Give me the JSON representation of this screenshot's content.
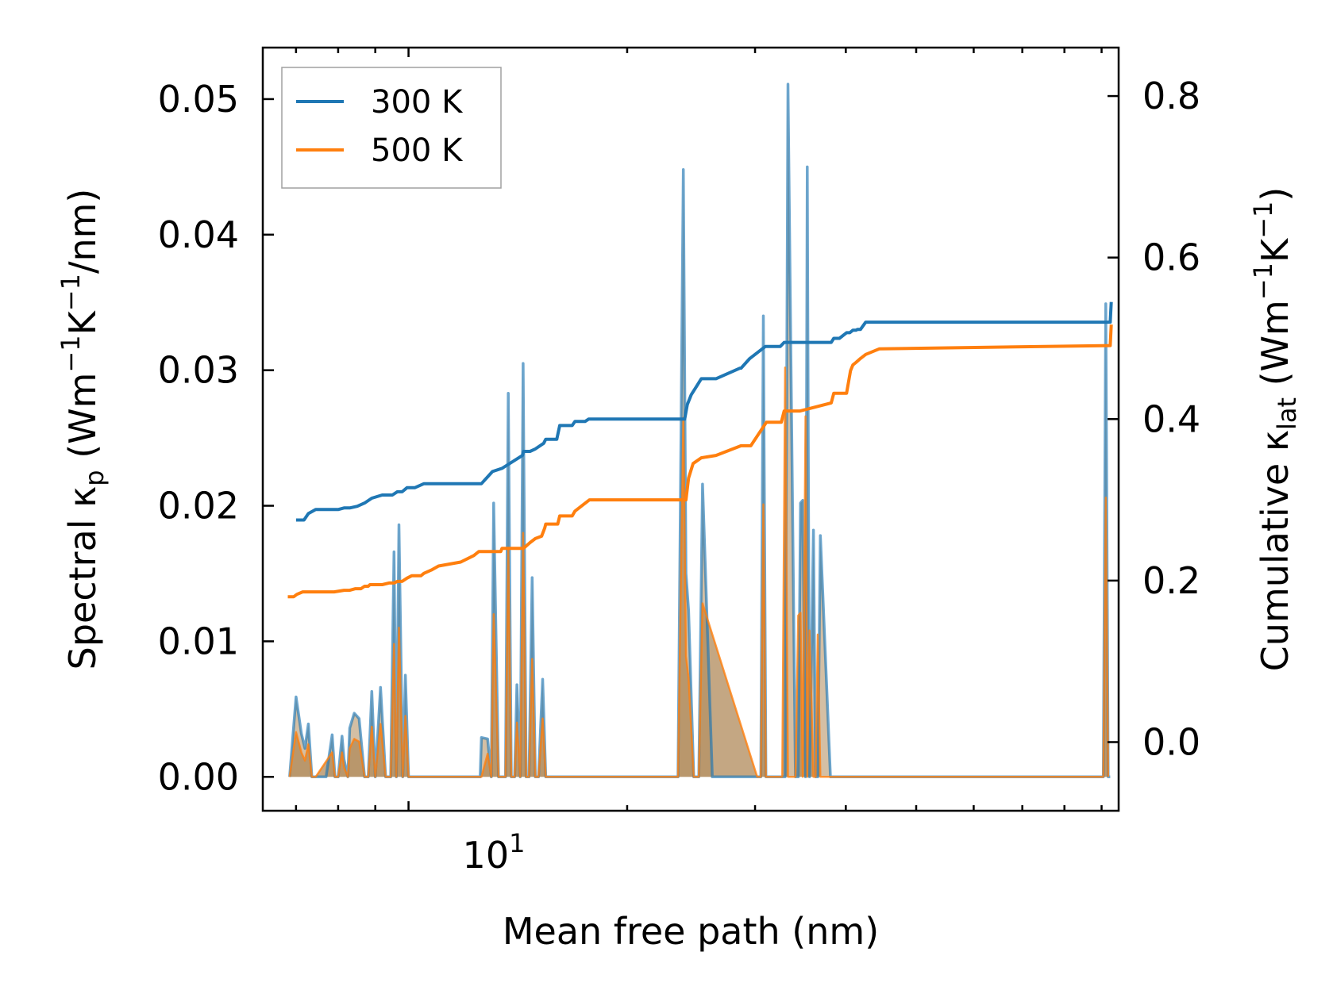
{
  "chart_data": {
    "type": "line",
    "title": "",
    "xlabel": "Mean free path (nm)",
    "ylabel": {
      "prefix": "Spectral κ",
      "sub": "p",
      "mid": " (Wm",
      "sup1": "−1",
      "k": "K",
      "sup2": "−1",
      "suffix": "/nm)"
    },
    "y2label": {
      "prefix": "Cumulative κ",
      "sub": "lat",
      "mid": " (Wm",
      "sup1": "−1",
      "k": "K",
      "sup2": "−1",
      "suffix": ")"
    },
    "xscale": "log",
    "xlim": [
      6.3,
      95
    ],
    "ylim": [
      -0.0025,
      0.0538
    ],
    "y2lim": [
      -0.085,
      0.86
    ],
    "x_major_tick": {
      "value": 10,
      "base": "10",
      "exp": "1"
    },
    "x_minor_ticks": [
      7,
      8,
      9,
      20,
      30,
      40,
      50,
      60,
      70,
      80,
      90
    ],
    "yticks": [
      0.0,
      0.01,
      0.02,
      0.03,
      0.04,
      0.05
    ],
    "ytick_labels": [
      "0.00",
      "0.01",
      "0.02",
      "0.03",
      "0.04",
      "0.05"
    ],
    "y2ticks": [
      0.0,
      0.2,
      0.4,
      0.6,
      0.8
    ],
    "y2tick_labels": [
      "0.0",
      "0.2",
      "0.4",
      "0.6",
      "0.8"
    ],
    "legend": {
      "position": "upper-left",
      "entries": [
        "300 K",
        "500 K"
      ]
    },
    "colors": {
      "300 K": "#1f77b4",
      "500 K": "#ff7f0e",
      "fill": "#b08a5a"
    },
    "series": [
      {
        "name": "300 K",
        "axis": "right",
        "kind": "cumulative",
        "x": [
          7.0,
          7.18,
          7.28,
          7.45,
          7.6,
          8.0,
          8.15,
          8.3,
          8.5,
          8.7,
          8.9,
          9.2,
          9.4,
          9.5,
          9.65,
          9.8,
          9.95,
          10.2,
          10.5,
          11.0,
          12.6,
          13.05,
          13.45,
          14.35,
          14.4,
          14.7,
          14.95,
          15.35,
          15.45,
          16.0,
          16.15,
          16.8,
          16.95,
          17.5,
          17.7,
          19.4,
          24.0,
          24.2,
          24.5,
          24.9,
          25.3,
          26.5,
          28.6,
          28.7,
          29.5,
          31.0,
          32.5,
          32.9,
          34.5,
          38.2,
          38.5,
          39.2,
          40.1,
          40.5,
          40.9,
          41.3,
          41.5,
          41.9,
          42.6,
          44.5,
          92.5,
          92.8
        ],
        "y": [
          0.275,
          0.275,
          0.283,
          0.288,
          0.288,
          0.288,
          0.29,
          0.29,
          0.292,
          0.296,
          0.302,
          0.306,
          0.306,
          0.306,
          0.31,
          0.31,
          0.315,
          0.315,
          0.32,
          0.32,
          0.32,
          0.335,
          0.339,
          0.355,
          0.36,
          0.36,
          0.363,
          0.37,
          0.375,
          0.375,
          0.392,
          0.392,
          0.397,
          0.397,
          0.4,
          0.4,
          0.4,
          0.418,
          0.43,
          0.44,
          0.45,
          0.45,
          0.463,
          0.463,
          0.475,
          0.49,
          0.49,
          0.495,
          0.495,
          0.495,
          0.5,
          0.5,
          0.507,
          0.507,
          0.51,
          0.51,
          0.511,
          0.511,
          0.52,
          0.52,
          0.52,
          0.545
        ],
        "note": "reserved"
      },
      {
        "name": "500 K",
        "axis": "right",
        "kind": "cumulative",
        "x": [
          6.82,
          6.95,
          7.02,
          7.15,
          7.28,
          7.5,
          7.7,
          7.9,
          8.15,
          8.3,
          8.45,
          8.6,
          8.7,
          8.8,
          8.85,
          9.0,
          9.2,
          9.4,
          9.55,
          9.65,
          9.8,
          9.95,
          10.1,
          10.25,
          10.4,
          10.5,
          10.75,
          11.0,
          11.8,
          12.3,
          12.5,
          12.8,
          13.4,
          13.45,
          13.9,
          14.3,
          14.4,
          14.7,
          14.95,
          15.25,
          15.4,
          15.45,
          16.05,
          16.15,
          16.8,
          16.95,
          17.4,
          17.75,
          19.7,
          24.1,
          24.3,
          24.65,
          25.3,
          26.5,
          28.7,
          29.6,
          31.1,
          32.6,
          32.9,
          34.6,
          38.2,
          38.5,
          40.1,
          40.6,
          40.9,
          41.3,
          41.9,
          42.6,
          44.5,
          92.5,
          92.8
        ],
        "y": [
          0.18,
          0.18,
          0.183,
          0.186,
          0.186,
          0.186,
          0.186,
          0.186,
          0.188,
          0.188,
          0.19,
          0.19,
          0.193,
          0.193,
          0.195,
          0.195,
          0.195,
          0.197,
          0.197,
          0.199,
          0.199,
          0.203,
          0.206,
          0.206,
          0.206,
          0.209,
          0.213,
          0.218,
          0.223,
          0.231,
          0.236,
          0.236,
          0.236,
          0.24,
          0.24,
          0.24,
          0.24,
          0.247,
          0.252,
          0.255,
          0.265,
          0.27,
          0.27,
          0.28,
          0.28,
          0.286,
          0.294,
          0.3,
          0.3,
          0.3,
          0.327,
          0.345,
          0.352,
          0.355,
          0.367,
          0.367,
          0.396,
          0.396,
          0.41,
          0.41,
          0.42,
          0.432,
          0.432,
          0.46,
          0.467,
          0.47,
          0.475,
          0.48,
          0.487,
          0.491,
          0.517
        ],
        "note": "reserved"
      }
    ],
    "spectral": [
      {
        "name": "300 K spectral",
        "axis": "left",
        "x": [
          6.86,
          7.0,
          7.12,
          7.2,
          7.28,
          7.36,
          7.45,
          7.7,
          7.85,
          7.92,
          8.0,
          8.1,
          8.15,
          8.25,
          8.3,
          8.42,
          8.55,
          8.7,
          8.8,
          8.9,
          9.0,
          9.15,
          9.3,
          9.45,
          9.55,
          9.62,
          9.7,
          9.82,
          9.9,
          10.0,
          10.1,
          10.15,
          10.25,
          10.4,
          12.55,
          12.6,
          12.85,
          13.0,
          13.1,
          13.3,
          13.5,
          13.6,
          13.72,
          13.85,
          14.0,
          14.1,
          14.25,
          14.38,
          14.52,
          14.65,
          14.8,
          14.95,
          15.1,
          15.3,
          15.45,
          15.65,
          15.82,
          16.0,
          16.15,
          16.35,
          16.55,
          16.75,
          16.95,
          17.15,
          23.5,
          23.9,
          24.1,
          24.3,
          24.7,
          25.1,
          25.4,
          26.2,
          26.4,
          26.6,
          26.8,
          30.2,
          30.55,
          30.8,
          31.05,
          31.3,
          32.4,
          32.7,
          33.0,
          33.3,
          34.1,
          34.4,
          34.65,
          34.9,
          35.2,
          35.4,
          35.65,
          36.1,
          36.35,
          36.6,
          36.9,
          38.1,
          38.3,
          38.55,
          38.8,
          39.6,
          39.85,
          40.1,
          40.35,
          90.5,
          91.2,
          91.9,
          92.5
        ],
        "y": [
          0.0,
          0.0059,
          0.0032,
          0.0021,
          0.0039,
          0.0,
          0.0,
          0.0,
          0.0031,
          0.0,
          0.0,
          0.003,
          0.0013,
          0.0,
          0.0036,
          0.0047,
          0.0043,
          0.0,
          0.0,
          0.0063,
          0.0,
          0.0066,
          0.0,
          0.0,
          0.0166,
          0.0,
          0.0186,
          0.0,
          0.0075,
          0.0,
          0.0,
          0.0,
          0.0,
          0.0,
          0.0,
          0.0029,
          0.0028,
          0.0,
          0.0202,
          0.0,
          0.0,
          0.0,
          0.0283,
          0.0,
          0.0,
          0.0068,
          0.0,
          0.0305,
          0.0,
          0.0,
          0.0147,
          0.0,
          0.0,
          0.0072,
          0.0,
          0.0,
          0.0,
          0.0,
          0.0,
          0.0,
          0.0,
          0.0,
          0.0,
          0.0,
          0.0,
          0.0448,
          0.015,
          0.0123,
          0.0,
          0.0,
          0.0216,
          0.0,
          0.0,
          0.0,
          0.0,
          0.0,
          0.0,
          0.034,
          0.0,
          0.0,
          0.0,
          0.0,
          0.0,
          0.0511,
          0.0,
          0.0,
          0.0202,
          0.0204,
          0.0,
          0.045,
          0.0,
          0.0182,
          0.0,
          0.0,
          0.0178,
          0.0,
          0.0,
          0.0,
          0.0,
          0.0,
          0.0,
          0.0,
          0.0,
          0.0,
          0.0349,
          0.0,
          0.0
        ]
      },
      {
        "name": "500 K spectral",
        "axis": "left",
        "x": [
          6.86,
          7.0,
          7.12,
          7.2,
          7.28,
          7.36,
          7.45,
          7.85,
          7.92,
          8.0,
          8.1,
          8.15,
          8.25,
          8.3,
          8.42,
          8.55,
          8.7,
          8.8,
          8.9,
          9.0,
          9.15,
          9.3,
          9.45,
          9.55,
          9.62,
          9.7,
          9.82,
          9.9,
          10.0,
          12.6,
          12.85,
          13.0,
          13.1,
          13.3,
          13.5,
          13.6,
          13.72,
          13.85,
          14.0,
          14.1,
          14.25,
          14.38,
          14.52,
          14.65,
          14.8,
          14.95,
          15.1,
          15.3,
          15.45,
          23.5,
          23.9,
          24.1,
          24.3,
          24.7,
          25.1,
          25.4,
          30.2,
          30.55,
          30.8,
          31.05,
          32.4,
          32.7,
          33.0,
          33.3,
          34.1,
          34.4,
          34.65,
          34.9,
          35.2,
          35.4,
          35.65,
          36.1,
          36.35,
          36.6,
          36.9,
          90.5,
          91.2,
          91.9
        ],
        "y": [
          0.0,
          0.0033,
          0.0018,
          0.0012,
          0.0024,
          0.0,
          0.0,
          0.0018,
          0.0,
          0.0,
          0.0018,
          0.0007,
          0.0,
          0.0021,
          0.0028,
          0.0026,
          0.0,
          0.0,
          0.0037,
          0.0,
          0.0039,
          0.0,
          0.0,
          0.0098,
          0.0,
          0.011,
          0.0,
          0.0045,
          0.0,
          0.0,
          0.0017,
          0.0,
          0.012,
          0.0,
          0.0,
          0.0,
          0.0168,
          0.0,
          0.0,
          0.004,
          0.0,
          0.018,
          0.0,
          0.0,
          0.0087,
          0.0,
          0.0,
          0.0043,
          0.0,
          0.0,
          0.0265,
          0.0089,
          0.0073,
          0.0,
          0.0,
          0.0128,
          0.0,
          0.0,
          0.0201,
          0.0,
          0.0,
          0.0,
          0.0302,
          0.0,
          0.0,
          0.0119,
          0.0121,
          0.0,
          0.0266,
          0.0,
          0.0108,
          0.0,
          0.0,
          0.0105,
          0.0,
          0.0,
          0.0206,
          0.0
        ]
      }
    ]
  }
}
